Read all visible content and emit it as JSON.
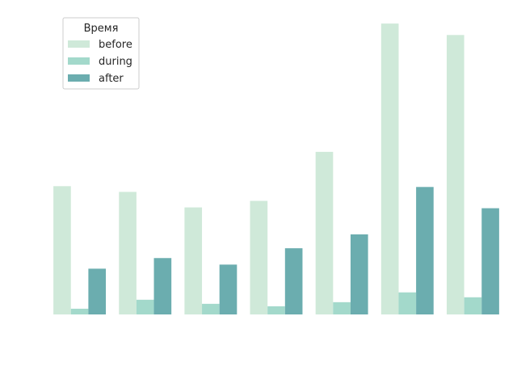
{
  "chart_data": {
    "type": "bar",
    "categories": [
      "",
      "",
      "",
      "",
      "",
      "",
      ""
    ],
    "series": [
      {
        "name": "before",
        "color": "#cfe9d9",
        "values": [
          157,
          150,
          131,
          139,
          199,
          356,
          342
        ]
      },
      {
        "name": "during",
        "color": "#a3d9cb",
        "values": [
          7,
          18,
          13,
          10,
          15,
          27,
          21
        ]
      },
      {
        "name": "after",
        "color": "#6badaf",
        "values": [
          56,
          69,
          61,
          81,
          98,
          156,
          130
        ]
      }
    ],
    "ylim": [
      0,
      370
    ],
    "title": "",
    "xlabel": "",
    "ylabel": "",
    "grid": false,
    "axes_visible": false,
    "legend": {
      "title": "Время",
      "position": "upper-left"
    }
  }
}
